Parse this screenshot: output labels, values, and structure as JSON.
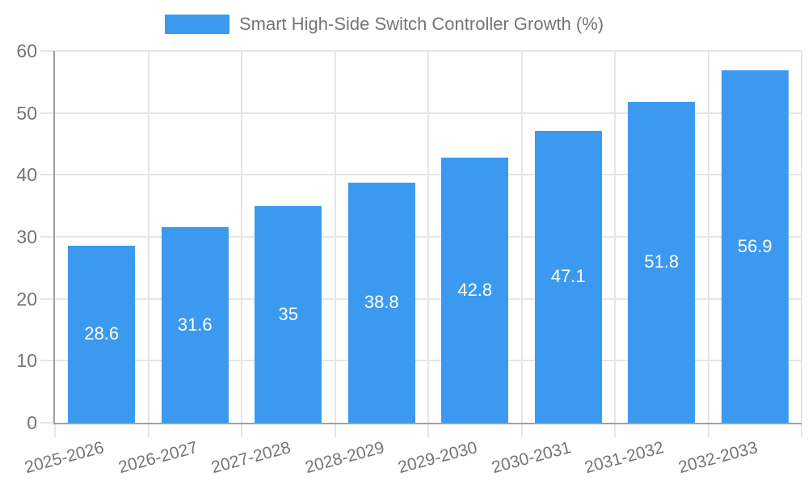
{
  "legend": {
    "label": "Smart High-Side Switch Controller Growth (%)"
  },
  "chart_data": {
    "type": "bar",
    "title": "Smart High-Side Switch Controller Growth (%)",
    "series_name": "Smart High-Side Switch Controller Growth (%)",
    "categories": [
      "2025-2026",
      "2026-2027",
      "2027-2028",
      "2028-2029",
      "2029-2030",
      "2030-2031",
      "2031-2032",
      "2032-2033"
    ],
    "values": [
      28.6,
      31.6,
      35,
      38.8,
      42.8,
      47.1,
      51.8,
      56.9
    ],
    "value_labels": [
      "28.6",
      "31.6",
      "35",
      "38.8",
      "42.8",
      "47.1",
      "51.8",
      "56.9"
    ],
    "xlabel": "",
    "ylabel": "",
    "ylim": [
      0,
      60
    ],
    "yticks": [
      0,
      10,
      20,
      30,
      40,
      50,
      60
    ],
    "grid": true,
    "legend_position": "top-center",
    "x_label_rotation_deg": -15,
    "bar_label_position": "inside-center"
  },
  "colors": {
    "bar": "#3b9af0",
    "bar_label": "#ffffff",
    "axis_line": "#a0a0a0",
    "gridline": "#e6e6e6",
    "axis_text": "#757575",
    "background": "#ffffff"
  }
}
